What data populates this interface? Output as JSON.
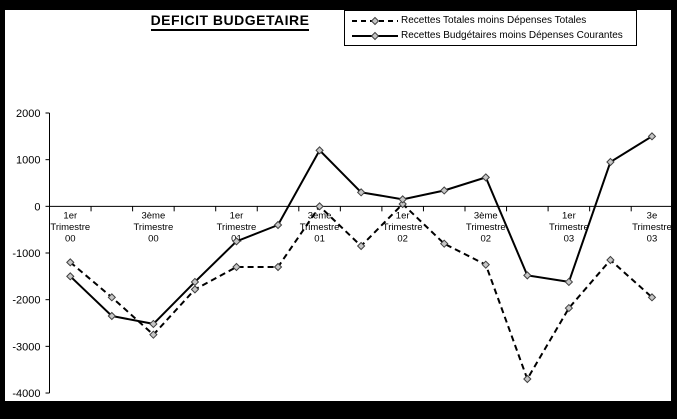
{
  "title": "DEFICIT BUDGETAIRE",
  "colors": {
    "line": "#000000",
    "marker_fill": "#c6c6c6",
    "marker_stroke": "#404040",
    "axis": "#000000",
    "frame": "#000000",
    "background": "#ffffff"
  },
  "legend": {
    "position": "top-right",
    "items": [
      {
        "label": "Recettes Totales moins Dépenses Totales",
        "line_style": "dashed",
        "marker": "diamond"
      },
      {
        "label": "Recettes Budgétaires moins Dépenses Courantes",
        "line_style": "solid",
        "marker": "diamond"
      }
    ]
  },
  "chart_data": {
    "type": "line",
    "title": "DEFICIT BUDGETAIRE",
    "categories": [
      "1er Trimestre 00",
      "",
      "3ème Trimestre 00",
      "",
      "1er Trimestre 01",
      "",
      "3ème Trimestre 01",
      "",
      "1er Trimestre 02",
      "",
      "3ème Trimestre 02",
      "",
      "1er Trimestre 03",
      "",
      "3e Trimestre 03"
    ],
    "series": [
      {
        "name": "Recettes Totales moins Dépenses Totales",
        "style": "dashed",
        "marker": "diamond",
        "values": [
          -1200,
          -1950,
          -2750,
          -1780,
          -1300,
          -1300,
          0,
          -850,
          50,
          -800,
          -1250,
          -3700,
          -2180,
          -1150,
          -1950
        ]
      },
      {
        "name": "Recettes Budgétaires moins Dépenses Courantes",
        "style": "solid",
        "marker": "diamond",
        "values": [
          -1500,
          -2350,
          -2520,
          -1620,
          -750,
          -400,
          1200,
          300,
          150,
          340,
          620,
          -1480,
          -1620,
          950,
          1500
        ]
      }
    ],
    "ylim": [
      -4000,
      2000
    ],
    "ytick_step": 1000,
    "ytick_labels": [
      "2000",
      "1000",
      "0",
      "-1000",
      "-2000",
      "-3000",
      "-4000"
    ],
    "xlabel": "",
    "ylabel": "",
    "grid": false,
    "legend_position": "top-right"
  }
}
